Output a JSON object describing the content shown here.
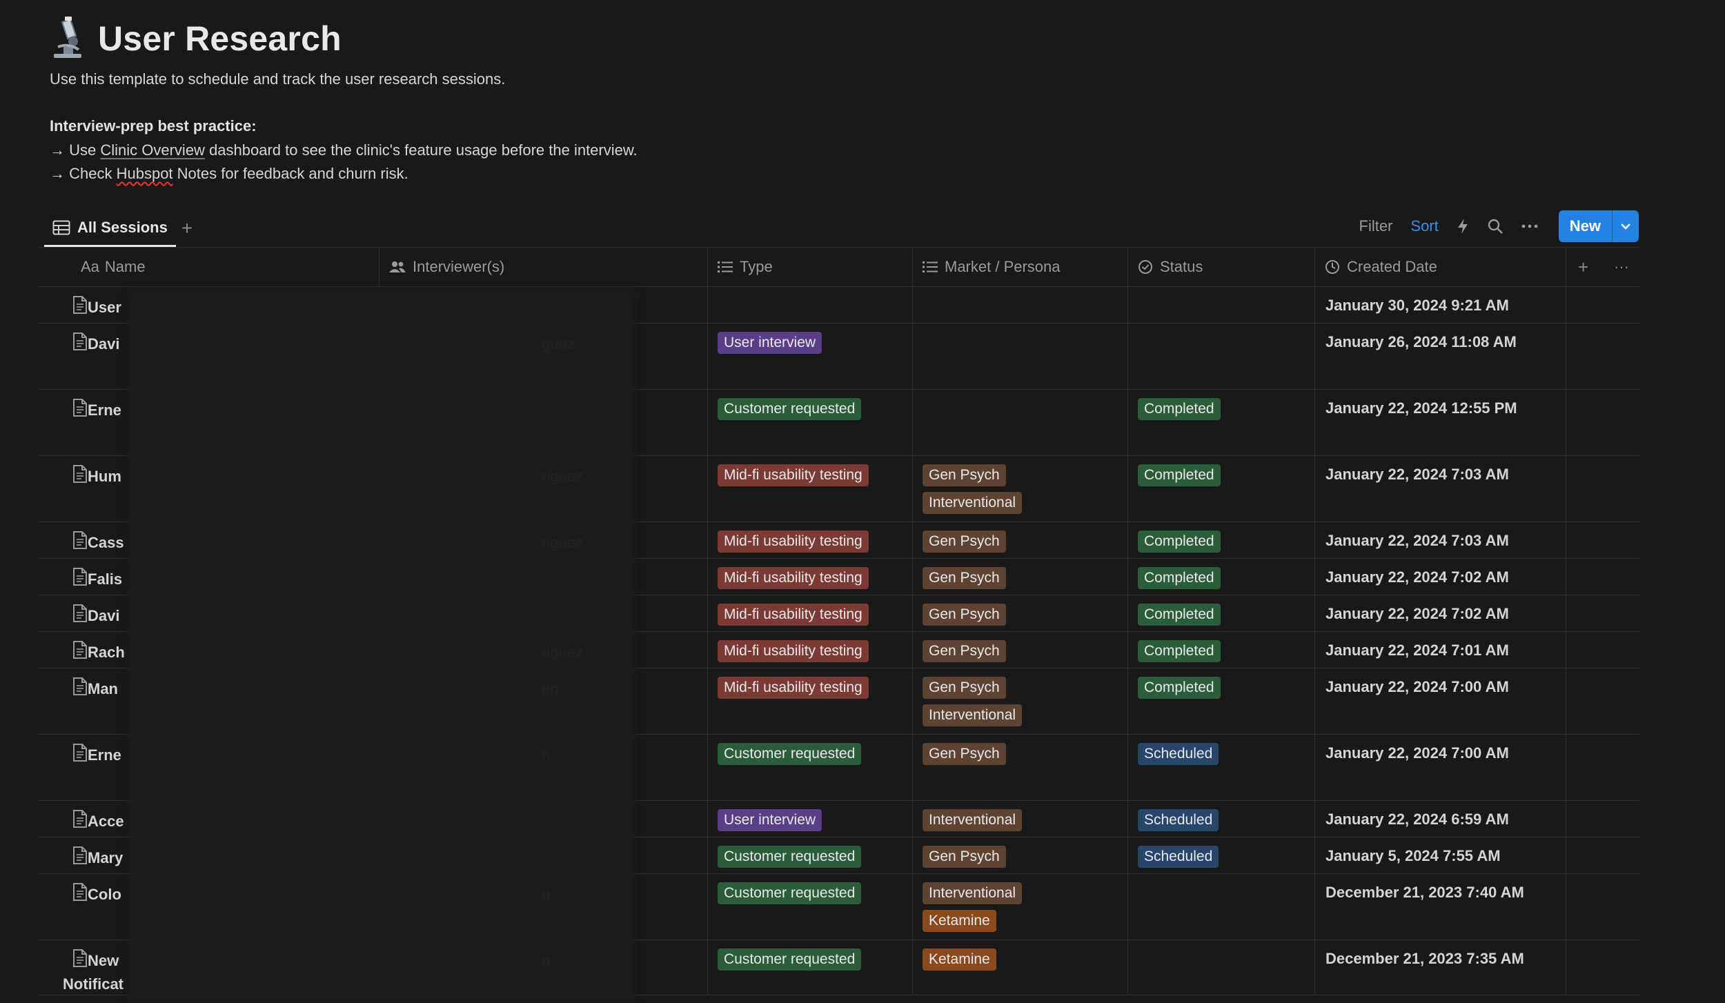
{
  "page": {
    "title": "User Research",
    "title_icon": "microscope-icon",
    "description": "Use this template to schedule and track the user research sessions.",
    "practice_heading": "Interview-prep best practice:",
    "bullet1": {
      "prefix": "→ Use ",
      "link": "Clinic Overview",
      "suffix": " dashboard to see the clinic's feature usage before the interview."
    },
    "bullet2": {
      "prefix": "→ Check ",
      "link": "Hubspot",
      "suffix": " Notes for feedback and churn risk."
    }
  },
  "view": {
    "tab_label": "All Sessions",
    "add_tab": "+"
  },
  "toolbar": {
    "filter": "Filter",
    "sort": "Sort",
    "new": "New"
  },
  "columns": {
    "name": "Name",
    "name_prefix": "Aa",
    "interviewers": "Interviewer(s)",
    "type": "Type",
    "market": "Market / Persona",
    "status": "Status",
    "created": "Created Date",
    "add": "+",
    "more": "···"
  },
  "colors": {
    "accent": "#2383e2",
    "tag_purple": "#5a3e87",
    "tag_green": "#2b5d3a",
    "tag_red": "#7b3a34",
    "tag_brown": "#5f4332",
    "tag_orange": "#8a4a1d",
    "tag_blue": "#28456c"
  },
  "rows": [
    {
      "name": "User",
      "name2": "",
      "interviewers": [
        "",
        ""
      ],
      "type": "",
      "market": [],
      "status": "",
      "date": "January 30, 2024 9:21 AM"
    },
    {
      "name": "Davi",
      "name2": "",
      "interviewers": [
        "guez",
        ""
      ],
      "type": "User interview",
      "market": [],
      "status": "",
      "date": "January 26, 2024 11:08 AM"
    },
    {
      "name": "Erne",
      "name2": "",
      "interviewers": [
        "",
        ""
      ],
      "type": "Customer requested",
      "market": [],
      "status": "Completed",
      "date": "January 22, 2024 12:55 PM"
    },
    {
      "name": "Hum",
      "name2": "",
      "interviewers": [
        "riguez",
        ""
      ],
      "type": "Mid-fi usability testing",
      "market": [
        "Gen Psych",
        "Interventional"
      ],
      "status": "Completed",
      "date": "January 22, 2024 7:03 AM"
    },
    {
      "name": "Cass",
      "name2": "",
      "interviewers": [
        "riguez",
        ""
      ],
      "type": "Mid-fi usability testing",
      "market": [
        "Gen Psych"
      ],
      "status": "Completed",
      "date": "January 22, 2024 7:03 AM"
    },
    {
      "name": "Falis",
      "name2": "",
      "interviewers": [
        "",
        ""
      ],
      "type": "Mid-fi usability testing",
      "market": [
        "Gen Psych"
      ],
      "status": "Completed",
      "date": "January 22, 2024 7:02 AM"
    },
    {
      "name": "Davi",
      "name2": "",
      "interviewers": [
        "",
        ""
      ],
      "type": "Mid-fi usability testing",
      "market": [
        "Gen Psych"
      ],
      "status": "Completed",
      "date": "January 22, 2024 7:02 AM"
    },
    {
      "name": "Rach",
      "name2": "",
      "interviewers": [
        "riguez",
        ""
      ],
      "type": "Mid-fi usability testing",
      "market": [
        "Gen Psych"
      ],
      "status": "Completed",
      "date": "January 22, 2024 7:01 AM"
    },
    {
      "name": "Man",
      "name2": "",
      "interviewers": [
        "en",
        ""
      ],
      "type": "Mid-fi usability testing",
      "market": [
        "Gen Psych",
        "Interventional"
      ],
      "status": "Completed",
      "date": "January 22, 2024 7:00 AM"
    },
    {
      "name": "Erne",
      "name2": "",
      "interviewers": [
        "h",
        ""
      ],
      "type": "Customer requested",
      "market": [
        "Gen Psych"
      ],
      "status": "Scheduled",
      "date": "January 22, 2024 7:00 AM"
    },
    {
      "name": "Acce",
      "name2": "",
      "interviewers": [
        "",
        ""
      ],
      "type": "User interview",
      "market": [
        "Interventional"
      ],
      "status": "Scheduled",
      "date": "January 22, 2024 6:59 AM"
    },
    {
      "name": "Mary",
      "name2": "",
      "interviewers": [
        "",
        ""
      ],
      "type": "Customer requested",
      "market": [
        "Gen Psych"
      ],
      "status": "Scheduled",
      "date": "January 5, 2024 7:55 AM"
    },
    {
      "name": "Colo",
      "name2": "",
      "interviewers": [
        "n",
        ""
      ],
      "type": "Customer requested",
      "market": [
        "Interventional",
        "Ketamine"
      ],
      "status": "",
      "date": "December 21, 2023 7:40 AM"
    },
    {
      "name": "New",
      "name2": "Notificat",
      "interviewers": [
        "n",
        ""
      ],
      "type": "Customer requested",
      "market": [
        "Ketamine"
      ],
      "status": "",
      "date": "December 21, 2023 7:35 AM"
    }
  ]
}
